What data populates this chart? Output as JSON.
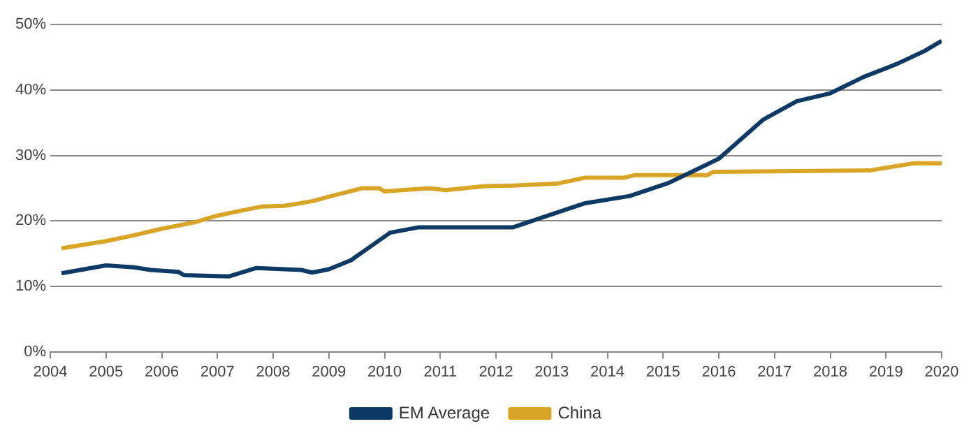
{
  "chart_data": {
    "type": "line",
    "xlim": [
      2004,
      2020
    ],
    "xticks": [
      2004,
      2005,
      2006,
      2007,
      2008,
      2009,
      2010,
      2011,
      2012,
      2013,
      2014,
      2015,
      2016,
      2017,
      2018,
      2019,
      2020
    ],
    "ylim": [
      0,
      50
    ],
    "yticks": [
      {
        "value": 0,
        "label": "0%"
      },
      {
        "value": 10,
        "label": "10%"
      },
      {
        "value": 20,
        "label": "20%"
      },
      {
        "value": 30,
        "label": "30%"
      },
      {
        "value": 40,
        "label": "40%"
      },
      {
        "value": 50,
        "label": "50%"
      }
    ],
    "grid": "y",
    "legend": "bottom",
    "marker": "none",
    "line_style": "solid",
    "series": [
      {
        "name": "EM Average",
        "color": "#0d3a64",
        "x": [
          2004.2,
          2005,
          2005.5,
          2005.8,
          2006.3,
          2006.4,
          2007.2,
          2007.7,
          2008.5,
          2008.7,
          2009,
          2009.4,
          2010.1,
          2010.6,
          2012.3,
          2013,
          2013.6,
          2014.4,
          2015.1,
          2016,
          2016.8,
          2017.4,
          2018,
          2018.6,
          2019.2,
          2019.7,
          2020
        ],
        "values": [
          12,
          13.2,
          12.9,
          12.5,
          12.2,
          11.7,
          11.5,
          12.8,
          12.5,
          12.1,
          12.6,
          14,
          18.2,
          19,
          19,
          21,
          22.7,
          23.8,
          25.8,
          29.5,
          35.5,
          38.3,
          39.5,
          42,
          44,
          46,
          47.5
        ]
      },
      {
        "name": "China",
        "color": "#d9a526",
        "x": [
          2004.2,
          2005,
          2005.5,
          2006,
          2006.6,
          2007,
          2007.5,
          2007.8,
          2008.2,
          2008.7,
          2009,
          2009.6,
          2009.9,
          2010,
          2010.8,
          2011.1,
          2011.8,
          2012.3,
          2013.1,
          2013.6,
          2014.3,
          2014.5,
          2015.8,
          2015.9,
          2017.4,
          2018.7,
          2019.5,
          2020
        ],
        "values": [
          15.8,
          16.9,
          17.8,
          18.8,
          19.8,
          20.8,
          21.7,
          22.2,
          22.3,
          23,
          23.7,
          25,
          25,
          24.5,
          25,
          24.7,
          25.3,
          25.4,
          25.7,
          26.6,
          26.6,
          27,
          27,
          27.5,
          27.6,
          27.7,
          28.8,
          28.8
        ]
      }
    ]
  }
}
